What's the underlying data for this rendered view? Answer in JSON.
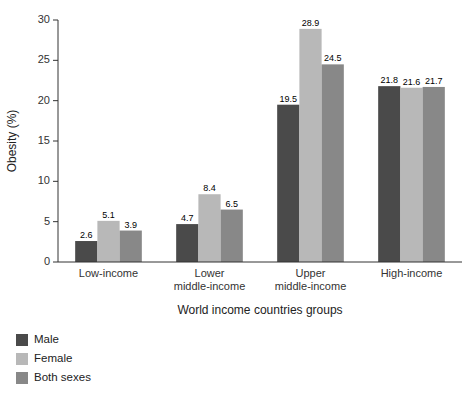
{
  "chart_data": {
    "type": "bar",
    "categories": [
      "Low-income",
      "Lower\nmiddle-income",
      "Upper\nmiddle-income",
      "High-income"
    ],
    "series": [
      {
        "name": "Male",
        "color": "#4a4a4a",
        "values": [
          2.6,
          4.7,
          19.5,
          21.8
        ]
      },
      {
        "name": "Female",
        "color": "#b8b8b8",
        "values": [
          5.1,
          8.4,
          28.9,
          21.6
        ]
      },
      {
        "name": "Both sexes",
        "color": "#888888",
        "values": [
          3.9,
          6.5,
          24.5,
          21.7
        ]
      }
    ],
    "xlabel": "World income countries groups",
    "ylabel": "Obesity (%)",
    "ylim": [
      0,
      30
    ],
    "yticks": [
      0,
      5,
      10,
      15,
      20,
      25,
      30
    ],
    "grid": false,
    "legend": "bottom",
    "data_labels": true
  }
}
